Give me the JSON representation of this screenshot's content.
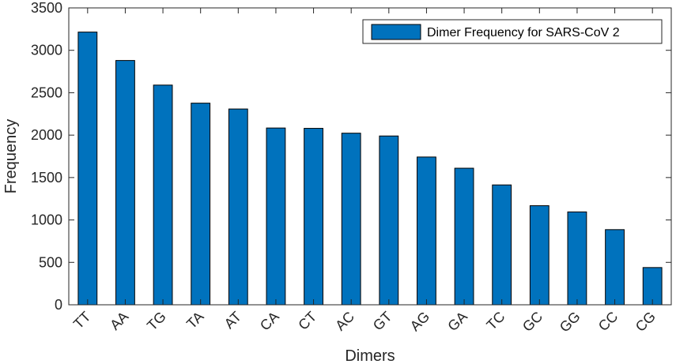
{
  "chart_data": {
    "type": "bar",
    "categories": [
      "TT",
      "AA",
      "TG",
      "TA",
      "AT",
      "CA",
      "CT",
      "AC",
      "GT",
      "AG",
      "GA",
      "TC",
      "GC",
      "GG",
      "CC",
      "CG"
    ],
    "series": [
      {
        "name": "Dimer Frequency for SARS-CoV 2",
        "values": [
          3215,
          2880,
          2590,
          2377,
          2308,
          2084,
          2080,
          2023,
          1990,
          1742,
          1610,
          1413,
          1168,
          1095,
          886,
          439
        ]
      }
    ],
    "xlabel": "Dimers",
    "ylabel": "Frequency",
    "ylim": [
      0,
      3500
    ],
    "yticks": [
      0,
      500,
      1000,
      1500,
      2000,
      2500,
      3000,
      3500
    ],
    "grid": false,
    "legend_position": "top-right",
    "colors": {
      "bar": "#0072BD",
      "bar_edge": "#000000",
      "axis": "#262626"
    }
  }
}
